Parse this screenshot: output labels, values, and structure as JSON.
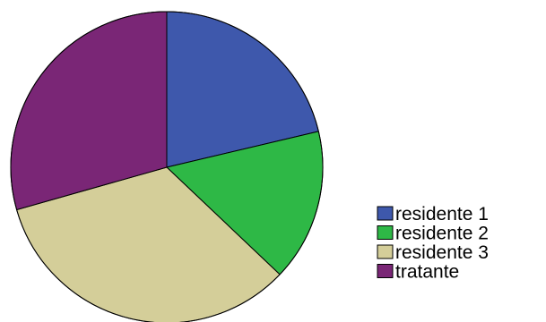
{
  "chart_data": {
    "type": "pie",
    "slices": [
      {
        "label": "residente 1",
        "value": 21.3,
        "color": "#3E58AC"
      },
      {
        "label": "residente 2",
        "value": 15.8,
        "color": "#2EB846"
      },
      {
        "label": "residente 3",
        "value": 33.5,
        "color": "#D4CE99"
      },
      {
        "label": "tratante",
        "value": 29.4,
        "color": "#7A2676"
      }
    ],
    "start_angle": "12 o'clock",
    "direction": "clockwise",
    "legend_position": "right",
    "slice_border_color": "#000000"
  }
}
